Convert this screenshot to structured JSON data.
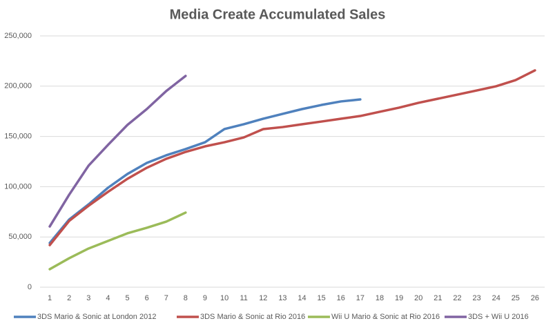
{
  "chart_data": {
    "type": "line",
    "title": "Media Create Accumulated Sales",
    "categories": [
      "1",
      "2",
      "3",
      "4",
      "5",
      "6",
      "7",
      "8",
      "9",
      "10",
      "11",
      "12",
      "13",
      "14",
      "15",
      "16",
      "17",
      "18",
      "19",
      "20",
      "21",
      "22",
      "23",
      "24",
      "25",
      "26"
    ],
    "series": [
      {
        "name": "3DS Mario & Sonic at London 2012",
        "color": "#4f81bd",
        "values": [
          44000,
          67300,
          82400,
          98900,
          112600,
          123600,
          131200,
          137400,
          144200,
          157300,
          162100,
          167600,
          172400,
          177200,
          181300,
          184800,
          186800,
          null,
          null,
          null,
          null,
          null,
          null,
          null,
          null,
          null
        ]
      },
      {
        "name": "3DS Mario & Sonic at Rio 2016",
        "color": "#c0504d",
        "values": [
          41900,
          65900,
          81000,
          94800,
          107800,
          118800,
          127700,
          134600,
          140100,
          144200,
          149000,
          157300,
          159300,
          162100,
          164800,
          167600,
          170300,
          174500,
          178600,
          183400,
          187500,
          191600,
          195700,
          199900,
          206000,
          215700
        ]
      },
      {
        "name": "Wii U Mario & Sonic at Rio 2016",
        "color": "#9bbb59",
        "values": [
          17900,
          28800,
          38500,
          46000,
          53600,
          59100,
          65200,
          74200,
          null,
          null,
          null,
          null,
          null,
          null,
          null,
          null,
          null,
          null,
          null,
          null,
          null,
          null,
          null,
          null,
          null,
          null
        ]
      },
      {
        "name": "3DS + Wii U 2016",
        "color": "#8064a2",
        "values": [
          60400,
          92000,
          120900,
          141500,
          161400,
          177200,
          195100,
          210200,
          null,
          null,
          null,
          null,
          null,
          null,
          null,
          null,
          null,
          null,
          null,
          null,
          null,
          null,
          null,
          null,
          null,
          null
        ]
      }
    ],
    "ylim": [
      0,
      250000
    ],
    "yticks": [
      0,
      {
        "value": 50000,
        "label": "50,000"
      },
      {
        "value": 100000,
        "label": "100,000"
      },
      {
        "value": 150000,
        "label": "150,000"
      },
      {
        "value": 200000,
        "label": "200,000"
      },
      {
        "value": 250000,
        "label": "250,000"
      }
    ],
    "grid": true,
    "legend": "bottom"
  }
}
